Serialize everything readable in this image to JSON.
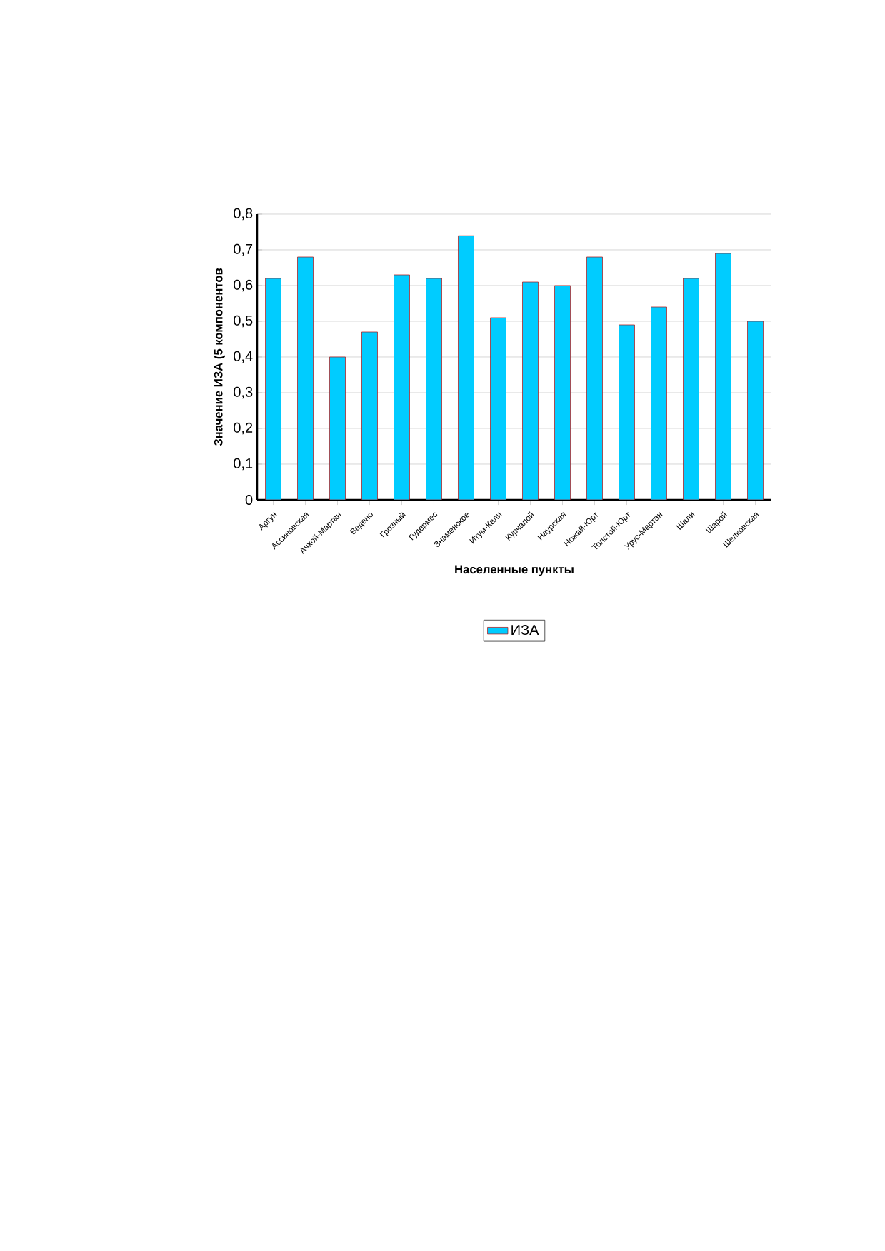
{
  "chart_data": {
    "type": "bar",
    "xlabel": "Населенные пункты",
    "ylabel": "Значение ИЗА (5 компонентов",
    "categories": [
      "Аргун",
      "Ассиновская",
      "Ачхой-Мартан",
      "Ведено",
      "Грозный",
      "Гудермес",
      "Знаменское",
      "Итум-Кали",
      "Курчалой",
      "Наурская",
      "Ножай-Юрт",
      "Толстой-Юрт",
      "Урус-Мартан",
      "Шали",
      "Шарой",
      "Шелковская"
    ],
    "series": [
      {
        "name": "ИЗА",
        "color": "#00ccff",
        "values": [
          0.62,
          0.68,
          0.4,
          0.47,
          0.63,
          0.62,
          0.74,
          0.51,
          0.61,
          0.6,
          0.68,
          0.49,
          0.54,
          0.62,
          0.69,
          0.5
        ]
      }
    ],
    "ylim": [
      0,
      0.8
    ],
    "yticks": [
      {
        "value": 0,
        "label": "0"
      },
      {
        "value": 0.1,
        "label": "0,1"
      },
      {
        "value": 0.2,
        "label": "0,2"
      },
      {
        "value": 0.3,
        "label": "0,3"
      },
      {
        "value": 0.4,
        "label": "0,4"
      },
      {
        "value": 0.5,
        "label": "0,5"
      },
      {
        "value": 0.6,
        "label": "0,6"
      },
      {
        "value": 0.7,
        "label": "0,7"
      },
      {
        "value": 0.8,
        "label": "0,8"
      }
    ],
    "grid": "y",
    "legend": "bottom"
  }
}
